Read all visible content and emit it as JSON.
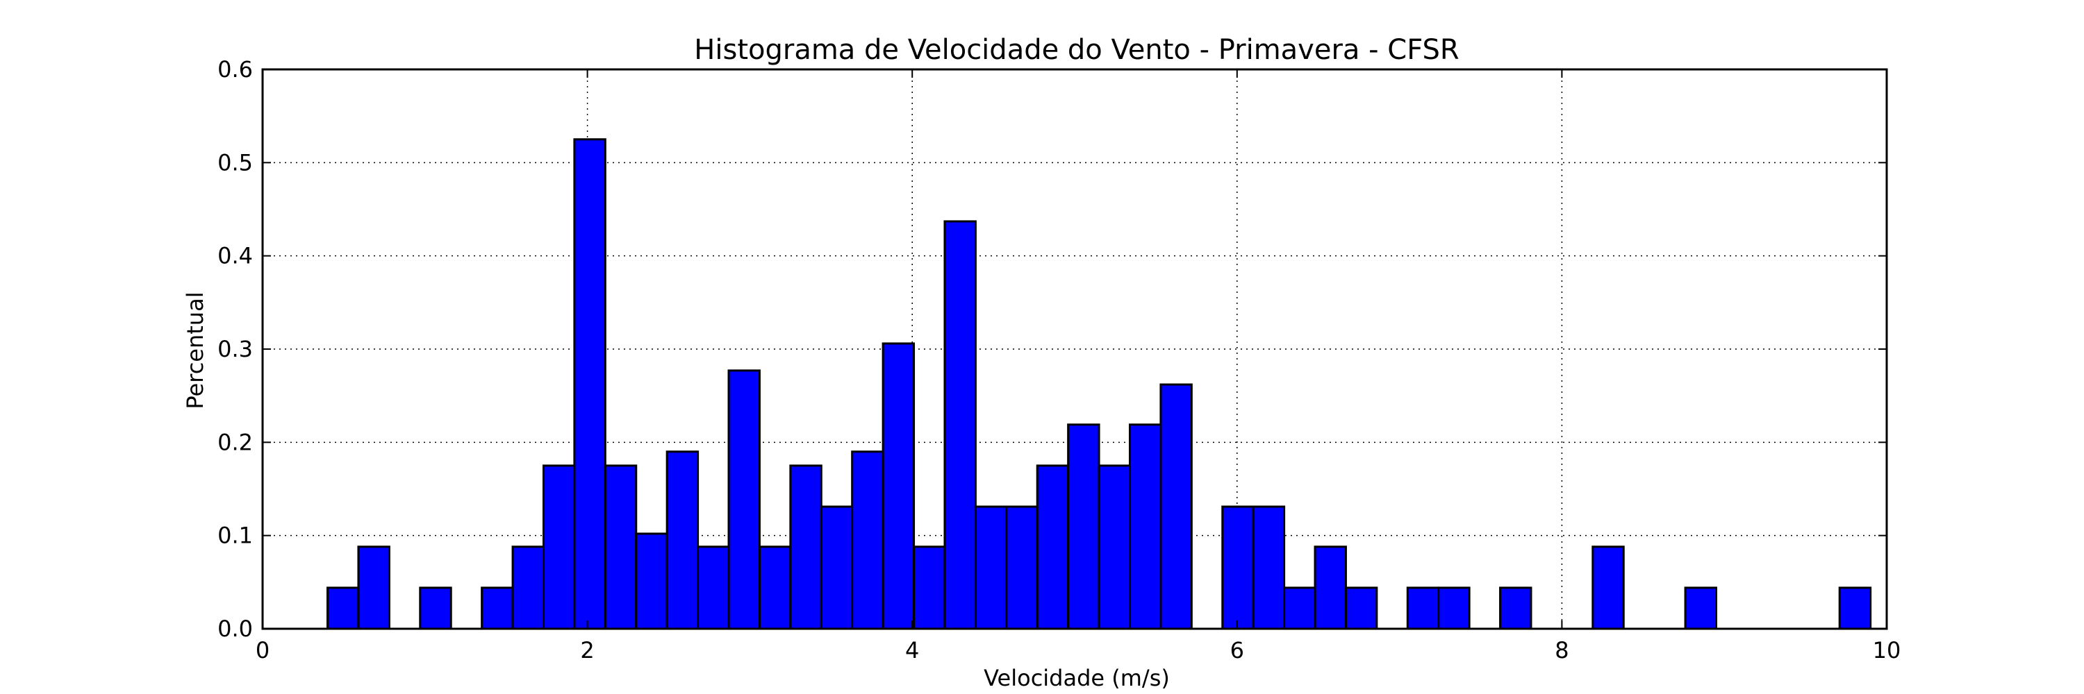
{
  "chart_data": {
    "type": "bar",
    "title": "Histograma de Velocidade do Vento - Primavera - CFSR",
    "xlabel": "Velocidade (m/s)",
    "ylabel": "Percentual",
    "xlim": [
      0,
      10
    ],
    "ylim": [
      0,
      0.6
    ],
    "bin_width": 0.19,
    "xticks": [
      "0",
      "2",
      "4",
      "6",
      "8",
      "10"
    ],
    "yticks": [
      "0.0",
      "0.1",
      "0.2",
      "0.3",
      "0.4",
      "0.5",
      "0.6"
    ],
    "grid": true,
    "bar_color": "#0000ff",
    "bars": [
      {
        "x0": 0.4,
        "value": 0.044
      },
      {
        "x0": 0.59,
        "value": 0.088
      },
      {
        "x0": 0.97,
        "value": 0.044
      },
      {
        "x0": 1.35,
        "value": 0.044
      },
      {
        "x0": 1.54,
        "value": 0.088
      },
      {
        "x0": 1.73,
        "value": 0.175
      },
      {
        "x0": 1.92,
        "value": 0.525
      },
      {
        "x0": 2.11,
        "value": 0.175
      },
      {
        "x0": 2.3,
        "value": 0.102
      },
      {
        "x0": 2.49,
        "value": 0.19
      },
      {
        "x0": 2.68,
        "value": 0.088
      },
      {
        "x0": 2.87,
        "value": 0.277
      },
      {
        "x0": 3.06,
        "value": 0.088
      },
      {
        "x0": 3.25,
        "value": 0.175
      },
      {
        "x0": 3.44,
        "value": 0.131
      },
      {
        "x0": 3.63,
        "value": 0.19
      },
      {
        "x0": 3.82,
        "value": 0.306
      },
      {
        "x0": 4.01,
        "value": 0.088
      },
      {
        "x0": 4.2,
        "value": 0.437
      },
      {
        "x0": 4.39,
        "value": 0.131
      },
      {
        "x0": 4.58,
        "value": 0.131
      },
      {
        "x0": 4.77,
        "value": 0.175
      },
      {
        "x0": 4.96,
        "value": 0.219
      },
      {
        "x0": 5.15,
        "value": 0.175
      },
      {
        "x0": 5.34,
        "value": 0.219
      },
      {
        "x0": 5.53,
        "value": 0.262
      },
      {
        "x0": 5.91,
        "value": 0.131
      },
      {
        "x0": 6.1,
        "value": 0.131
      },
      {
        "x0": 6.29,
        "value": 0.044
      },
      {
        "x0": 6.48,
        "value": 0.088
      },
      {
        "x0": 6.67,
        "value": 0.044
      },
      {
        "x0": 7.05,
        "value": 0.044
      },
      {
        "x0": 7.24,
        "value": 0.044
      },
      {
        "x0": 7.62,
        "value": 0.044
      },
      {
        "x0": 8.19,
        "value": 0.088
      },
      {
        "x0": 8.76,
        "value": 0.044
      },
      {
        "x0": 9.71,
        "value": 0.044
      }
    ]
  }
}
